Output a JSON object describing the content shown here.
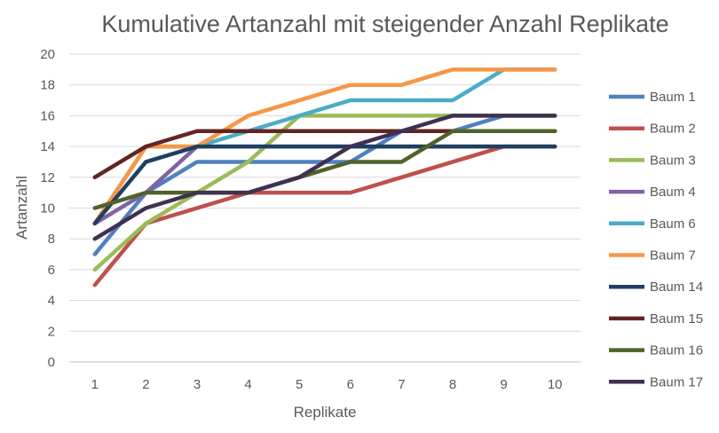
{
  "chart_data": {
    "type": "line",
    "title": "Kumulative Artanzahl mit steigender Anzahl Replikate",
    "xlabel": "Replikate",
    "ylabel": "Artanzahl",
    "categories": [
      "1",
      "2",
      "3",
      "4",
      "5",
      "6",
      "7",
      "8",
      "9",
      "10"
    ],
    "ylim": [
      0,
      20
    ],
    "yticks": [
      0,
      2,
      4,
      6,
      8,
      10,
      12,
      14,
      16,
      18,
      20
    ],
    "grid": true,
    "legend_position": "right",
    "series": [
      {
        "name": "Baum 1",
        "color": "#4F81BD",
        "values": [
          7,
          11,
          13,
          13,
          13,
          13,
          15,
          15,
          16,
          16
        ]
      },
      {
        "name": "Baum 2",
        "color": "#C0504D",
        "values": [
          5,
          9,
          10,
          11,
          11,
          11,
          12,
          13,
          14,
          14
        ]
      },
      {
        "name": "Baum 3",
        "color": "#9BBB59",
        "values": [
          6,
          9,
          11,
          13,
          16,
          16,
          16,
          16,
          16,
          16
        ]
      },
      {
        "name": "Baum 4",
        "color": "#8064A2",
        "values": [
          9,
          11,
          14,
          14,
          14,
          14,
          14,
          14,
          14,
          14
        ]
      },
      {
        "name": "Baum 6",
        "color": "#4BACC6",
        "values": [
          9,
          14,
          14,
          15,
          16,
          17,
          17,
          17,
          19,
          19
        ]
      },
      {
        "name": "Baum 7",
        "color": "#F79646",
        "values": [
          9,
          14,
          14,
          16,
          17,
          18,
          18,
          19,
          19,
          19
        ]
      },
      {
        "name": "Baum 14",
        "color": "#1F3F5F",
        "values": [
          9,
          13,
          14,
          14,
          14,
          14,
          14,
          14,
          14,
          14
        ]
      },
      {
        "name": "Baum 15",
        "color": "#632523",
        "values": [
          12,
          14,
          15,
          15,
          15,
          15,
          15,
          15,
          15,
          15
        ]
      },
      {
        "name": "Baum 16",
        "color": "#4F6228",
        "values": [
          10,
          11,
          11,
          11,
          12,
          13,
          13,
          15,
          15,
          15
        ]
      },
      {
        "name": "Baum 17",
        "color": "#3F3151",
        "values": [
          8,
          10,
          11,
          11,
          12,
          14,
          15,
          16,
          16,
          16
        ]
      }
    ]
  }
}
